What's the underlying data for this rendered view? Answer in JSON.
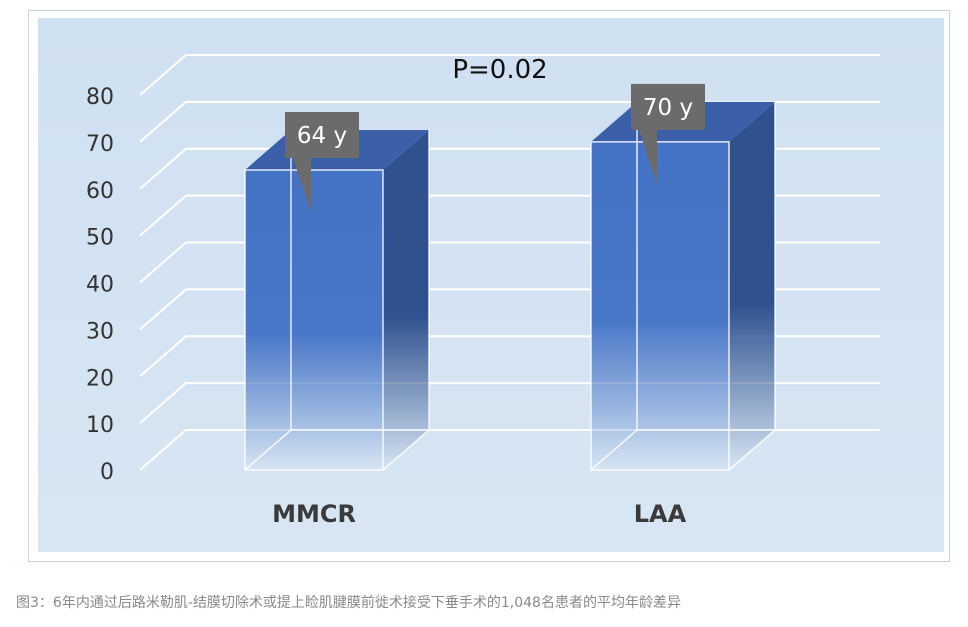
{
  "chart_data": {
    "type": "bar",
    "style": "3d",
    "categories": [
      "MMCR",
      "LAA"
    ],
    "values": [
      64,
      70
    ],
    "data_labels": [
      "64 y",
      "70 y"
    ],
    "annotation": "P=0.02",
    "ylim": [
      0,
      80
    ],
    "yticks": [
      0,
      10,
      20,
      30,
      40,
      50,
      60,
      70,
      80
    ],
    "grid": true,
    "colors": {
      "bar_front": "#4472c4",
      "bar_side": "#2f528f",
      "bar_top": "#3b5fa8",
      "callout": "#6b6b6b",
      "background": "#d2e1f0",
      "gridline": "#ffffff"
    }
  },
  "caption": "图3：6年内通过后路米勒肌-结膜切除术或提上睑肌腱膜前徙术接受下垂手术的1,048名患者的平均年龄差异"
}
